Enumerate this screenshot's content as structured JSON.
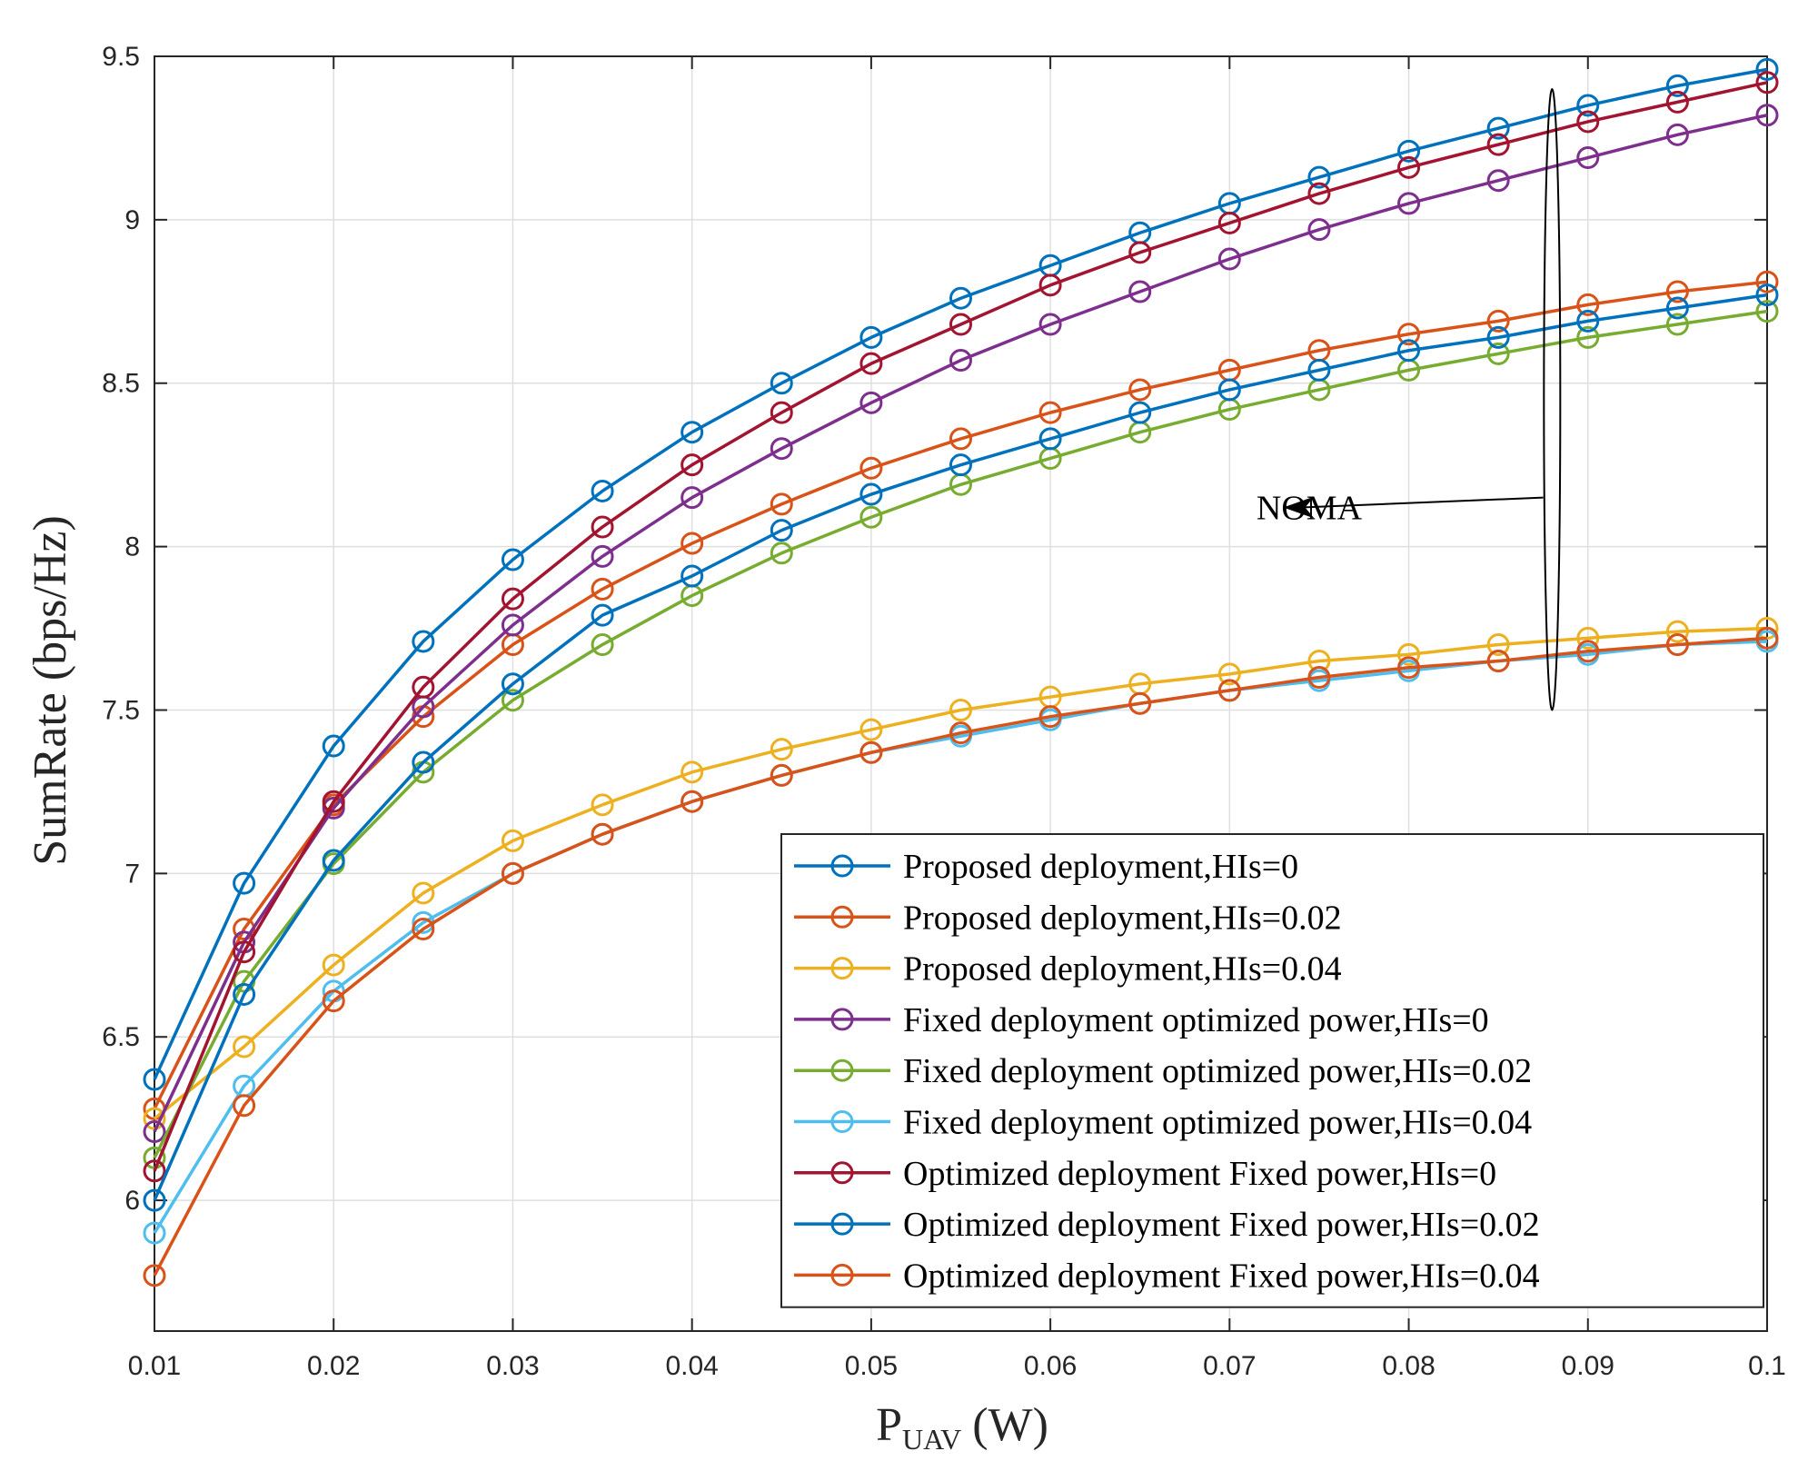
{
  "chart_data": {
    "type": "line",
    "title": "",
    "xlabel": "P",
    "xlabel_sub": "UAV",
    "xlabel_unit": "(W)",
    "ylabel": "SumRate (bps/Hz)",
    "xlim": [
      0.01,
      0.1
    ],
    "ylim": [
      5.6,
      9.5
    ],
    "grid": true,
    "x_ticks": [
      0.01,
      0.02,
      0.03,
      0.04,
      0.05,
      0.06,
      0.07,
      0.08,
      0.09,
      0.1
    ],
    "x_tick_labels": [
      "0.01",
      "0.02",
      "0.03",
      "0.04",
      "0.05",
      "0.06",
      "0.07",
      "0.08",
      "0.09",
      "0.1"
    ],
    "y_ticks": [
      6,
      6.5,
      7,
      7.5,
      8,
      8.5,
      9,
      9.5
    ],
    "y_tick_labels": [
      "6",
      "6.5",
      "7",
      "7.5",
      "8",
      "8.5",
      "9",
      "9.5"
    ],
    "x": [
      0.01,
      0.015,
      0.02,
      0.025,
      0.03,
      0.035,
      0.04,
      0.045,
      0.05,
      0.055,
      0.06,
      0.065,
      0.07,
      0.075,
      0.08,
      0.085,
      0.09,
      0.095,
      0.1
    ],
    "legend_position": "bottom-right",
    "marker": "circle",
    "series": [
      {
        "name": "Proposed deployment,HIs=0",
        "color": "#0072BD",
        "values": [
          6.37,
          6.97,
          7.39,
          7.71,
          7.96,
          8.17,
          8.35,
          8.5,
          8.64,
          8.76,
          8.86,
          8.96,
          9.05,
          9.13,
          9.21,
          9.28,
          9.35,
          9.41,
          9.46
        ]
      },
      {
        "name": "Proposed deployment,HIs=0.02",
        "color": "#D95319",
        "values": [
          6.28,
          6.83,
          7.21,
          7.48,
          7.7,
          7.87,
          8.01,
          8.13,
          8.24,
          8.33,
          8.41,
          8.48,
          8.54,
          8.6,
          8.65,
          8.69,
          8.74,
          8.78,
          8.81
        ]
      },
      {
        "name": "Proposed deployment,HIs=0.04",
        "color": "#EDB120",
        "values": [
          6.25,
          6.47,
          6.72,
          6.94,
          7.1,
          7.21,
          7.31,
          7.38,
          7.44,
          7.5,
          7.54,
          7.58,
          7.61,
          7.65,
          7.67,
          7.7,
          7.72,
          7.74,
          7.75
        ]
      },
      {
        "name": "Fixed deployment optimized power,HIs=0",
        "color": "#7E2F8E",
        "values": [
          6.21,
          6.79,
          7.2,
          7.51,
          7.76,
          7.97,
          8.15,
          8.3,
          8.44,
          8.57,
          8.68,
          8.78,
          8.88,
          8.97,
          9.05,
          9.12,
          9.19,
          9.26,
          9.32
        ]
      },
      {
        "name": "Fixed deployment optimized power,HIs=0.02",
        "color": "#77AC30",
        "values": [
          6.13,
          6.67,
          7.03,
          7.31,
          7.53,
          7.7,
          7.85,
          7.98,
          8.09,
          8.19,
          8.27,
          8.35,
          8.42,
          8.48,
          8.54,
          8.59,
          8.64,
          8.68,
          8.72
        ]
      },
      {
        "name": "Fixed deployment optimized power,HIs=0.04",
        "color": "#4DBEEE",
        "values": [
          5.9,
          6.35,
          6.64,
          6.85,
          7.0,
          7.12,
          7.22,
          7.3,
          7.37,
          7.42,
          7.47,
          7.52,
          7.56,
          7.59,
          7.62,
          7.65,
          7.67,
          7.7,
          7.71
        ]
      },
      {
        "name": "Optimized deployment Fixed power,HIs=0",
        "color": "#A2142F",
        "values": [
          6.09,
          6.76,
          7.22,
          7.57,
          7.84,
          8.06,
          8.25,
          8.41,
          8.56,
          8.68,
          8.8,
          8.9,
          8.99,
          9.08,
          9.16,
          9.23,
          9.3,
          9.36,
          9.42
        ]
      },
      {
        "name": "Optimized deployment Fixed power,HIs=0.02",
        "color": "#0072BD",
        "values": [
          6.0,
          6.63,
          7.04,
          7.34,
          7.58,
          7.79,
          7.91,
          8.05,
          8.16,
          8.25,
          8.33,
          8.41,
          8.48,
          8.54,
          8.6,
          8.64,
          8.69,
          8.73,
          8.77
        ]
      },
      {
        "name": "Optimized deployment Fixed power,HIs=0.04",
        "color": "#D95319",
        "values": [
          5.77,
          6.29,
          6.61,
          6.83,
          7.0,
          7.12,
          7.22,
          7.3,
          7.37,
          7.43,
          7.48,
          7.52,
          7.56,
          7.6,
          7.63,
          7.65,
          7.68,
          7.7,
          7.72
        ]
      }
    ],
    "annotations": [
      {
        "text": "NOMA",
        "type": "ellipse-with-arrow",
        "ellipse_x": 0.088,
        "ellipse_ylim": [
          7.5,
          9.4
        ],
        "arrow_tip": [
          0.073,
          8.12
        ],
        "arrow_tail": [
          0.0875,
          8.15
        ],
        "text_anchor_x": 0.0715,
        "text_anchor_y": 8.12
      }
    ]
  }
}
